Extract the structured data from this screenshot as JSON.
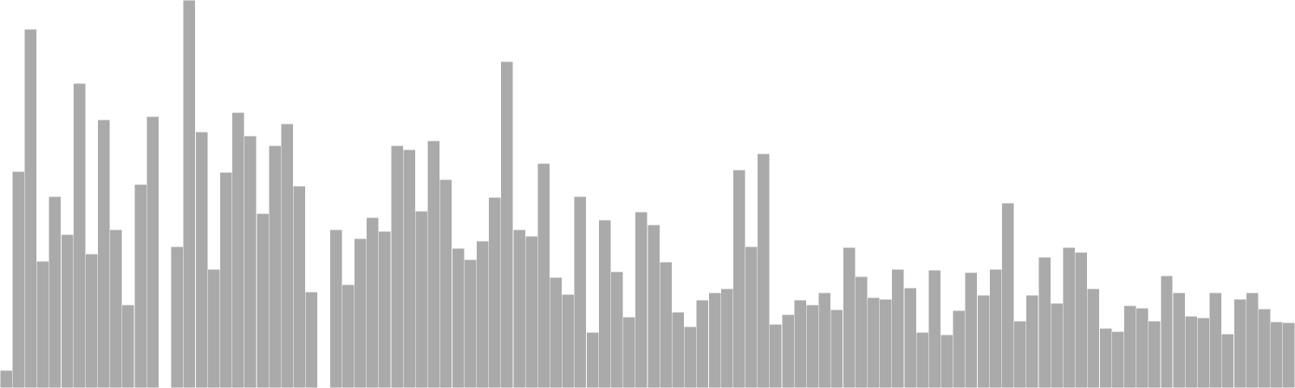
{
  "chart_data": {
    "type": "bar",
    "title": "",
    "xlabel": "",
    "ylabel": "",
    "ylim": [
      0,
      480
    ],
    "grid": false,
    "legend": "none",
    "bar_color": "#aaaaaa",
    "bar_edge_color": "#ffffff",
    "values": [
      22,
      268,
      444,
      157,
      237,
      190,
      377,
      166,
      332,
      196,
      103,
      252,
      336,
      0,
      175,
      480,
      317,
      147,
      267,
      341,
      312,
      216,
      300,
      327,
      250,
      119,
      0,
      196,
      128,
      185,
      211,
      194,
      300,
      295,
      219,
      306,
      258,
      173,
      159,
      182,
      236,
      404,
      196,
      188,
      278,
      137,
      116,
      237,
      69,
      208,
      144,
      88,
      218,
      202,
      156,
      94,
      76,
      109,
      118,
      123,
      270,
      175,
      290,
      79,
      91,
      109,
      103,
      118,
      97,
      174,
      138,
      112,
      110,
      147,
      124,
      69,
      146,
      66,
      96,
      143,
      115,
      147,
      229,
      83,
      115,
      162,
      105,
      174,
      168,
      123,
      74,
      70,
      102,
      99,
      83,
      139,
      118,
      89,
      87,
      118,
      67,
      110,
      118,
      98,
      82,
      81
    ]
  }
}
